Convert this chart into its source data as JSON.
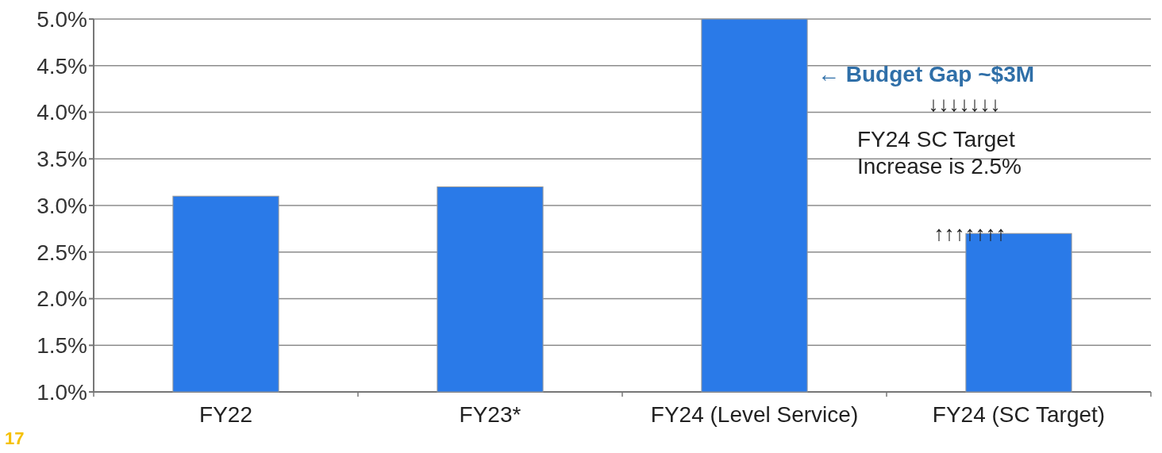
{
  "chart_data": {
    "type": "bar",
    "categories": [
      "FY22",
      "FY23*",
      "FY24 (Level Service)",
      "FY24 (SC Target)"
    ],
    "values": [
      3.1,
      3.2,
      5.0,
      2.7
    ],
    "color": "#2a7ae8",
    "ylim": [
      1,
      5
    ],
    "yticks": [
      {
        "value": 1,
        "label": "1.0%"
      },
      {
        "value": 1.5,
        "label": "1.5%"
      },
      {
        "value": 2,
        "label": "2.0%"
      },
      {
        "value": 2.5,
        "label": "2.5%"
      },
      {
        "value": 3,
        "label": "3.0%"
      },
      {
        "value": 3.5,
        "label": "3.5%"
      },
      {
        "value": 4,
        "label": "4.0%"
      },
      {
        "value": 4.5,
        "label": "4.5%"
      },
      {
        "value": 5,
        "label": "5.0%"
      }
    ],
    "grid": "y",
    "annotations": [
      "← Budget Gap ~$3M",
      "↓↓↓↓↓↓↓",
      "FY24 SC Target Increase is 2.5%",
      "↑↑↑↑↑↑↑",
      "17"
    ]
  }
}
